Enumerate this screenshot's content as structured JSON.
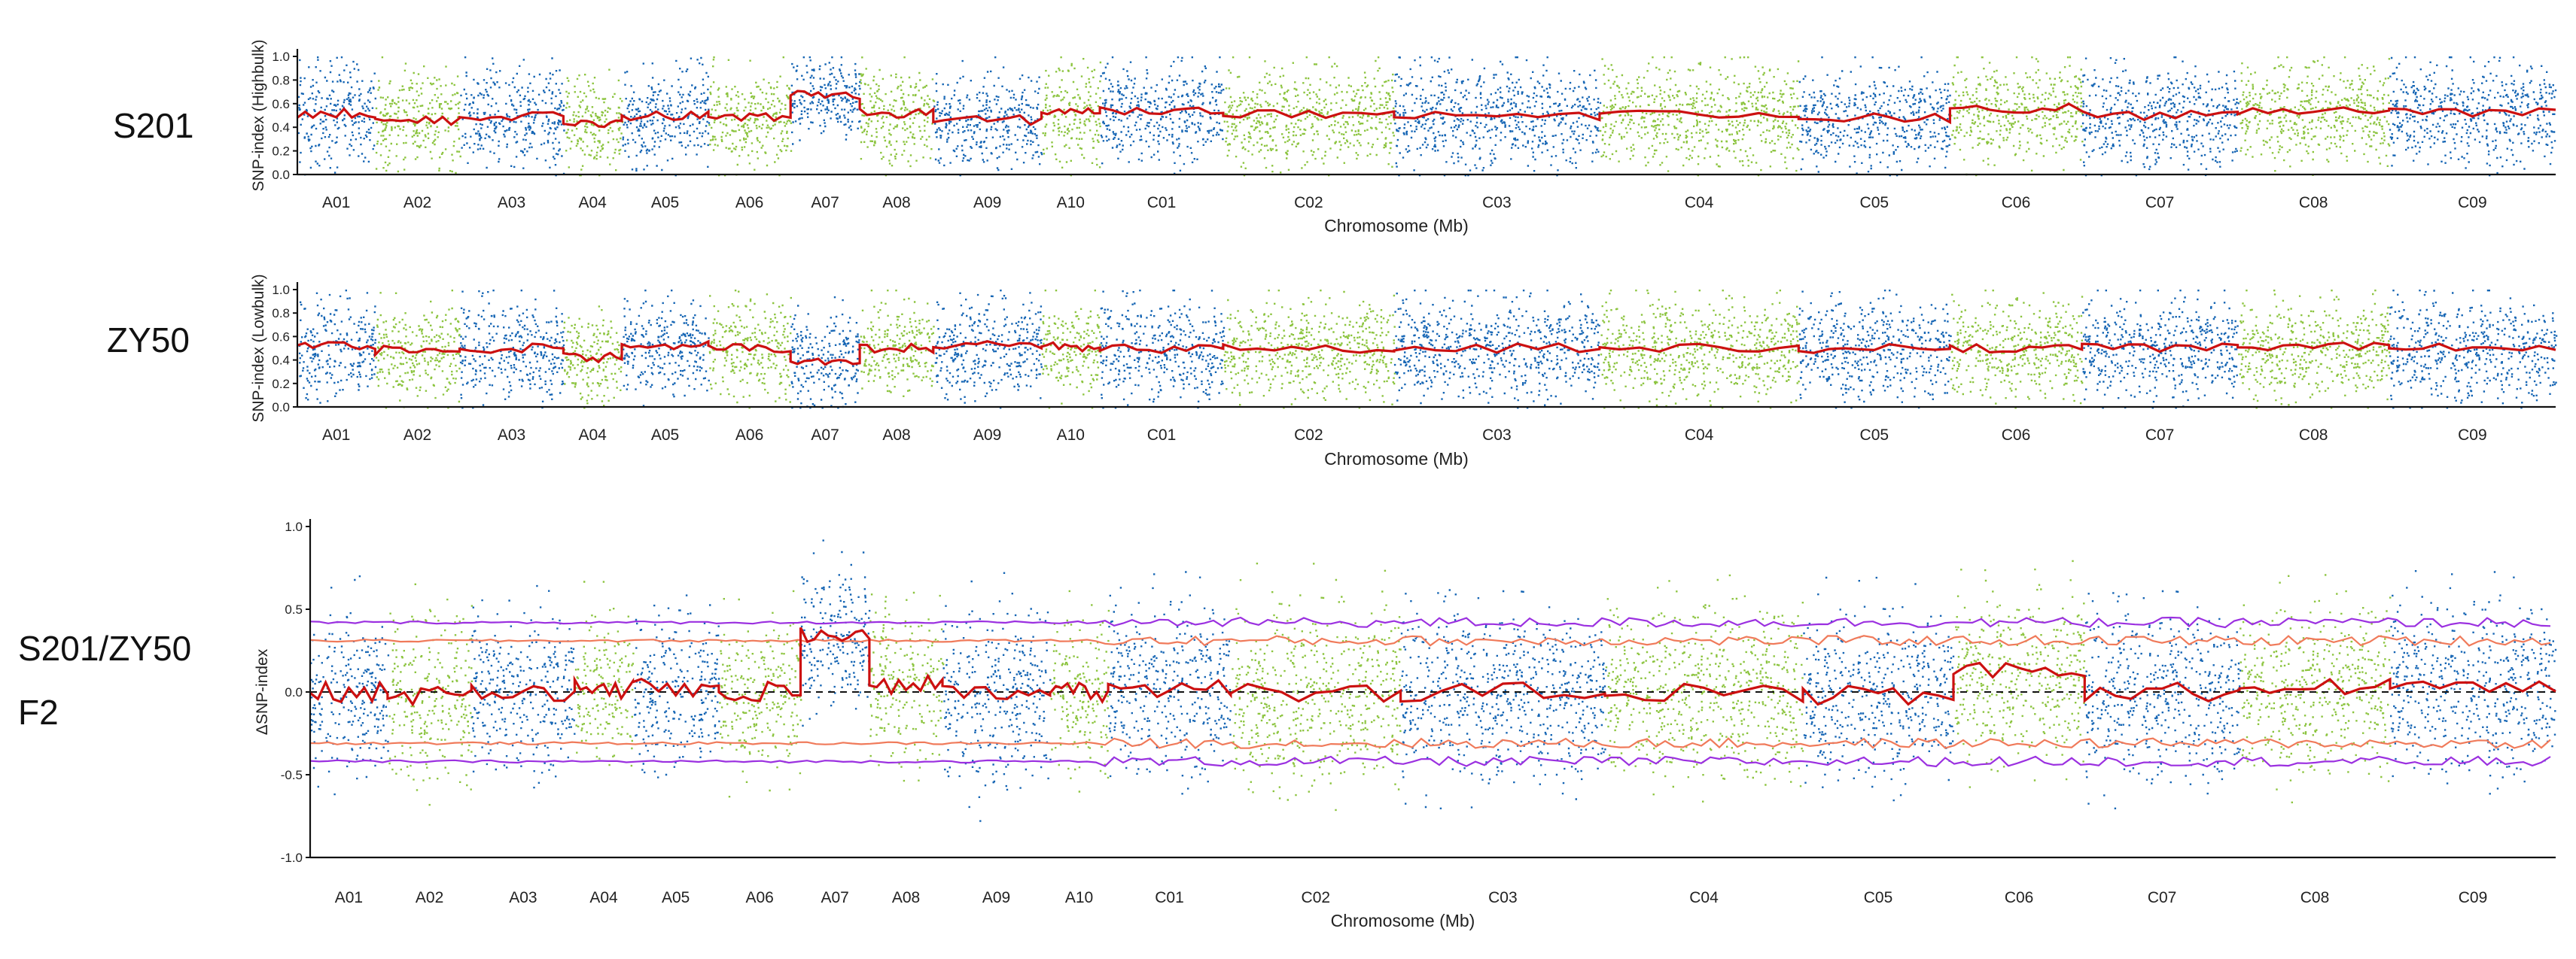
{
  "side_labels": {
    "top": "S201",
    "middle": "ZY50",
    "bottom_line1": "S201/ZY50",
    "bottom_line2": "F2"
  },
  "chart_data": [
    {
      "type": "scatter",
      "title": "",
      "ylabel": "SNP-index (Highbulk)",
      "xlabel": "Chromosome (Mb)",
      "ylim": [
        0,
        1.0
      ],
      "yticks": [
        "0.0",
        "0.2",
        "0.4",
        "0.6",
        "0.8",
        "1.0"
      ],
      "chromosomes": [
        "A01",
        "A02",
        "A03",
        "A04",
        "A05",
        "A06",
        "A07",
        "A08",
        "A09",
        "A10",
        "C01",
        "C02",
        "C03",
        "C04",
        "C05",
        "C06",
        "C07",
        "C08",
        "C09"
      ],
      "chromosome_sizes_mb": [
        36,
        39,
        48,
        27,
        40,
        38,
        32,
        34,
        50,
        27,
        57,
        79,
        95,
        92,
        70,
        61,
        72,
        70,
        77
      ],
      "point_colors": [
        "#1565b4",
        "#8cc43f"
      ],
      "trend_color": "#cc1010",
      "trend_means": [
        0.52,
        0.46,
        0.5,
        0.43,
        0.5,
        0.48,
        0.68,
        0.52,
        0.46,
        0.52,
        0.53,
        0.51,
        0.5,
        0.51,
        0.48,
        0.56,
        0.5,
        0.54,
        0.52
      ],
      "spread": [
        0.44,
        0.44,
        0.44,
        0.4,
        0.44,
        0.44,
        0.34,
        0.44,
        0.44,
        0.44,
        0.45,
        0.45,
        0.46,
        0.46,
        0.45,
        0.44,
        0.45,
        0.45,
        0.46
      ]
    },
    {
      "type": "scatter",
      "title": "",
      "ylabel": "SNP-index (Lowbulk)",
      "xlabel": "Chromosome (Mb)",
      "ylim": [
        0,
        1.0
      ],
      "yticks": [
        "0.0",
        "0.2",
        "0.4",
        "0.6",
        "0.8",
        "1.0"
      ],
      "chromosomes": [
        "A01",
        "A02",
        "A03",
        "A04",
        "A05",
        "A06",
        "A07",
        "A08",
        "A09",
        "A10",
        "C01",
        "C02",
        "C03",
        "C04",
        "C05",
        "C06",
        "C07",
        "C08",
        "C09"
      ],
      "chromosome_sizes_mb": [
        36,
        39,
        48,
        27,
        40,
        38,
        32,
        34,
        50,
        27,
        57,
        79,
        95,
        92,
        70,
        61,
        72,
        70,
        77
      ],
      "point_colors": [
        "#1565b4",
        "#8cc43f"
      ],
      "trend_color": "#cc1010",
      "trend_means": [
        0.52,
        0.48,
        0.5,
        0.42,
        0.52,
        0.5,
        0.4,
        0.5,
        0.52,
        0.51,
        0.5,
        0.5,
        0.5,
        0.51,
        0.5,
        0.5,
        0.5,
        0.51,
        0.5
      ],
      "spread": [
        0.45,
        0.44,
        0.45,
        0.4,
        0.45,
        0.44,
        0.42,
        0.44,
        0.45,
        0.44,
        0.45,
        0.46,
        0.46,
        0.46,
        0.45,
        0.45,
        0.45,
        0.45,
        0.46
      ]
    },
    {
      "type": "scatter",
      "title": "",
      "ylabel": "ΔSNP-index",
      "xlabel": "Chromosome (Mb)",
      "ylim": [
        -1.0,
        1.0
      ],
      "yticks": [
        "-1.0",
        "-0.5",
        "0.0",
        "0.5",
        "1.0"
      ],
      "chromosomes": [
        "A01",
        "A02",
        "A03",
        "A04",
        "A05",
        "A06",
        "A07",
        "A08",
        "A09",
        "A10",
        "C01",
        "C02",
        "C03",
        "C04",
        "C05",
        "C06",
        "C07",
        "C08",
        "C09"
      ],
      "chromosome_sizes_mb": [
        36,
        39,
        48,
        27,
        40,
        38,
        32,
        34,
        50,
        27,
        57,
        79,
        95,
        92,
        70,
        61,
        72,
        70,
        77
      ],
      "point_colors": [
        "#1565b4",
        "#8cc43f"
      ],
      "trend_color": "#cc1010",
      "threshold_95_color": "#f07a5a",
      "threshold_99_color": "#9b30e0",
      "threshold_95": [
        0.31,
        -0.31
      ],
      "threshold_99": [
        0.42,
        -0.42
      ],
      "zero_line": 0.0,
      "trend_means": [
        0.0,
        -0.02,
        0.0,
        0.02,
        0.02,
        0.0,
        0.35,
        0.05,
        -0.02,
        0.0,
        0.02,
        0.0,
        0.0,
        0.0,
        -0.02,
        0.12,
        0.0,
        0.03,
        0.02
      ],
      "spread": [
        0.55,
        0.55,
        0.5,
        0.5,
        0.5,
        0.5,
        0.45,
        0.5,
        0.6,
        0.5,
        0.55,
        0.6,
        0.55,
        0.55,
        0.55,
        0.55,
        0.55,
        0.55,
        0.55
      ]
    }
  ]
}
